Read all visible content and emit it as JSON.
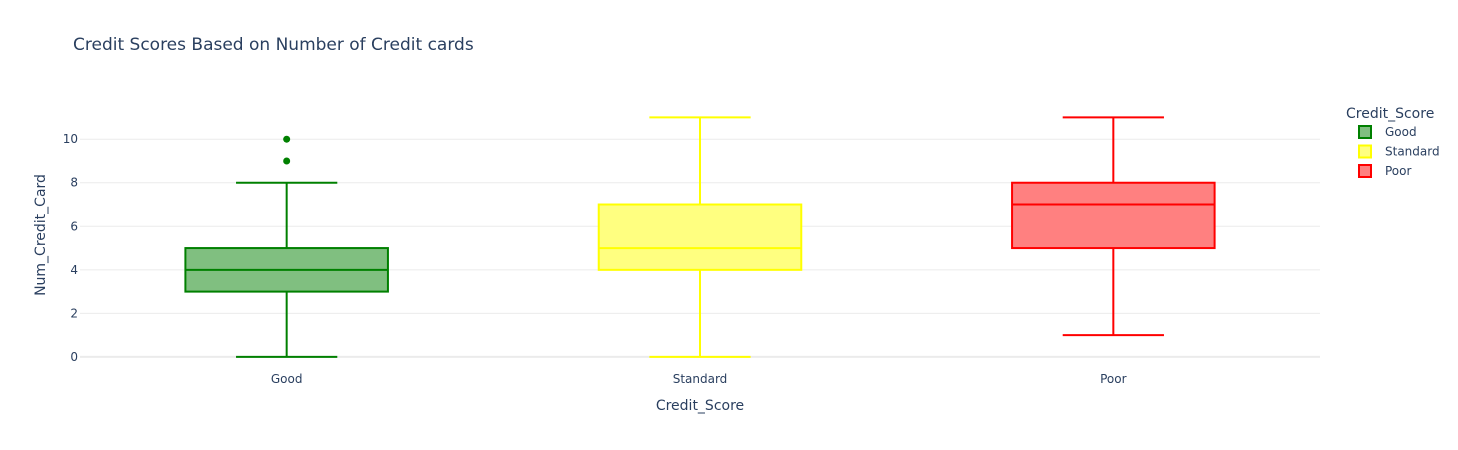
{
  "chart_data": {
    "type": "box",
    "title": "Credit Scores Based on Number of Credit cards",
    "xlabel": "Credit_Score",
    "ylabel": "Num_Credit_Card",
    "categories": [
      "Good",
      "Standard",
      "Poor"
    ],
    "ylim": [
      -0.6,
      11.8
    ],
    "yticks": [
      0,
      2,
      4,
      6,
      8,
      10
    ],
    "grid": true,
    "legend": {
      "title": "Credit_Score",
      "placement": "top-right",
      "entries": [
        "Good",
        "Standard",
        "Poor"
      ]
    },
    "series": [
      {
        "name": "Good",
        "color": "#008000",
        "fill": "#80bf80",
        "min": 0,
        "q1": 3,
        "median": 4,
        "q3": 5,
        "max": 8,
        "outliers": [
          9,
          10
        ]
      },
      {
        "name": "Standard",
        "color": "#ffff00",
        "fill": "#ffff80",
        "min": 0,
        "q1": 4,
        "median": 5,
        "q3": 7,
        "max": 11,
        "outliers": []
      },
      {
        "name": "Poor",
        "color": "#ff0000",
        "fill": "#ff8080",
        "min": 1,
        "q1": 5,
        "median": 7,
        "q3": 8,
        "max": 11,
        "outliers": []
      }
    ]
  }
}
